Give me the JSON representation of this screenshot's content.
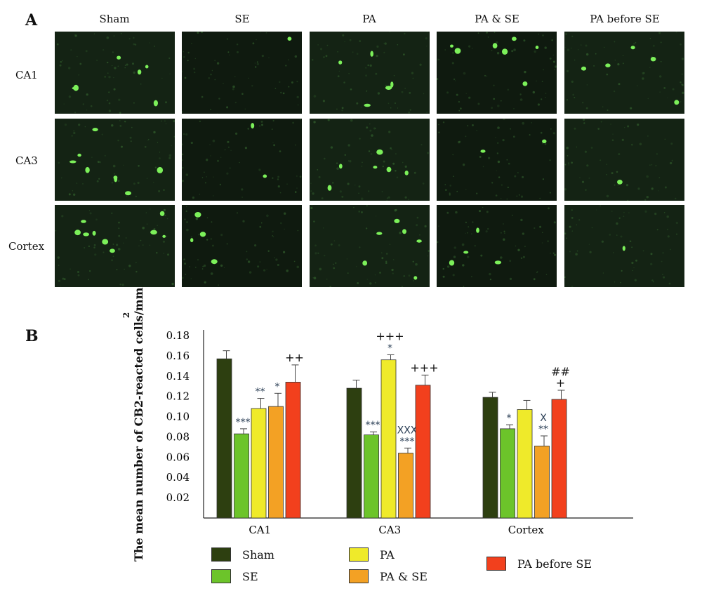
{
  "panel_a": {
    "letter": "A",
    "columns": [
      "Sham",
      "SE",
      "PA",
      "PA & SE",
      "PA before SE"
    ],
    "rows": [
      "CA1",
      "CA3",
      "Cortex"
    ]
  },
  "panel_b": {
    "letter": "B"
  },
  "colors": {
    "Sham": "#2d3f10",
    "SE": "#6cc42a",
    "PA": "#efea2a",
    "PA & SE": "#f3a124",
    "PA before SE": "#f2401d"
  },
  "chart_data": {
    "type": "bar",
    "ylabel": "The mean number of CB2-reacted cells/mm",
    "ylabel_superscript": "2",
    "categories": [
      "CA1",
      "CA3",
      "Cortex"
    ],
    "yticks": [
      "0.02",
      "0.04",
      "0.06",
      "0.08",
      "0.10",
      "0.12",
      "0.14",
      "0.16",
      "0.18"
    ],
    "ylim": [
      0,
      0.185
    ],
    "grid": false,
    "legend_position": "bottom",
    "series": [
      {
        "name": "Sham",
        "values": [
          0.157,
          0.128,
          0.119
        ],
        "errors": [
          0.008,
          0.008,
          0.005
        ],
        "annotations": [
          "",
          "",
          ""
        ]
      },
      {
        "name": "SE",
        "values": [
          0.083,
          0.082,
          0.088
        ],
        "errors": [
          0.005,
          0.003,
          0.004
        ],
        "annotations": [
          "***",
          "***",
          "*"
        ]
      },
      {
        "name": "PA",
        "values": [
          0.108,
          0.156,
          0.107
        ],
        "errors": [
          0.01,
          0.005,
          0.009
        ],
        "annotations": [
          "**",
          "+++\n*",
          ""
        ]
      },
      {
        "name": "PA & SE",
        "values": [
          0.11,
          0.064,
          0.071
        ],
        "errors": [
          0.013,
          0.005,
          0.01
        ],
        "annotations": [
          "*",
          "XXX\n***",
          "X\n**"
        ]
      },
      {
        "name": "PA before SE",
        "values": [
          0.134,
          0.131,
          0.117
        ],
        "errors": [
          0.017,
          0.01,
          0.009
        ],
        "annotations": [
          "++",
          "+++",
          "##\n+"
        ]
      }
    ]
  }
}
